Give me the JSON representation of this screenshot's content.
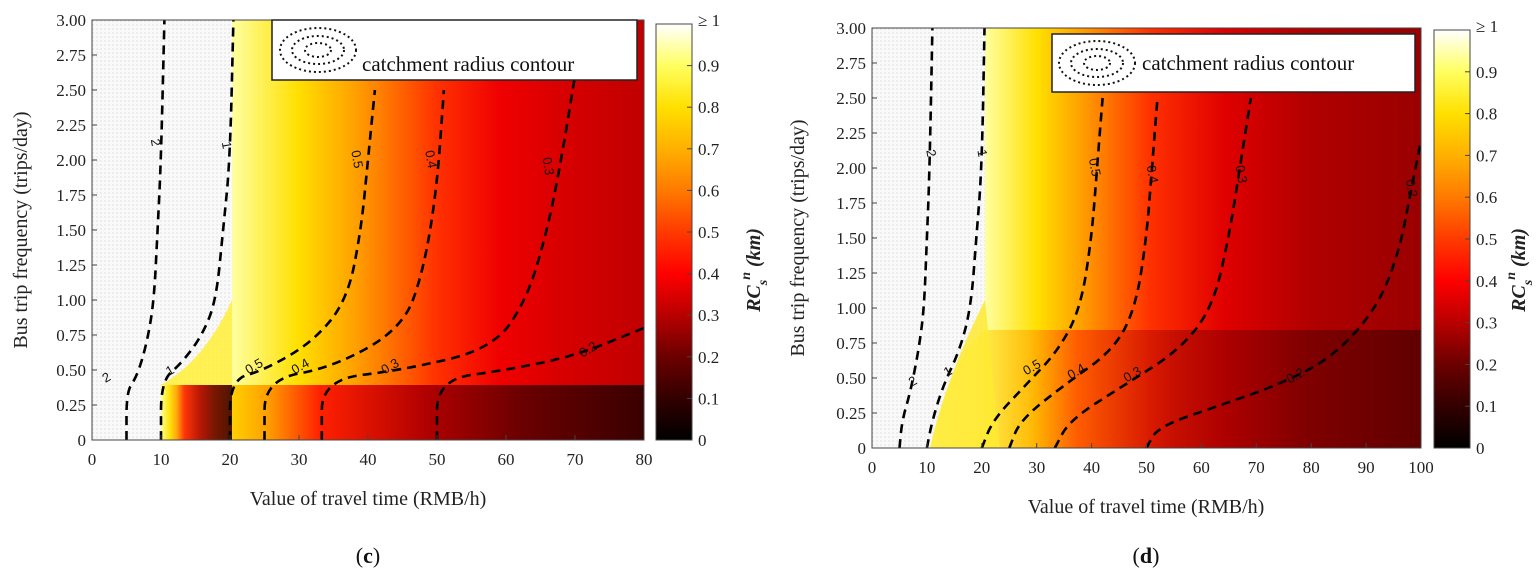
{
  "chart_data": [
    {
      "type": "heatmap",
      "panel_caption": "(c)",
      "panel_letter": "c",
      "xlabel": "Value of travel time (RMB/h)",
      "ylabel": "Bus trip frequency (trips/day)",
      "colorbar_label": "RC_s^n (km)",
      "xlim": [
        0,
        80
      ],
      "ylim": [
        0,
        3
      ],
      "xticks": [
        "0",
        "10",
        "20",
        "30",
        "40",
        "50",
        "60",
        "70",
        "80"
      ],
      "yticks": [
        "0",
        "0.25",
        "0.50",
        "0.75",
        "1.00",
        "1.25",
        "1.50",
        "1.75",
        "2.00",
        "2.25",
        "2.50",
        "2.75",
        "3.00"
      ],
      "colorbar_ticks": [
        "0",
        "0.1",
        "0.2",
        "0.3",
        "0.4",
        "0.5",
        "0.6",
        "0.7",
        "0.8",
        "0.9",
        "≥ 1"
      ],
      "legend": "catchment radius contour",
      "contours": [
        {
          "label": "2",
          "points": [
            [
              5,
              0
            ],
            [
              5,
              0.35
            ],
            [
              6.5,
              0.45
            ],
            [
              8,
              0.7
            ],
            [
              9,
              1.0
            ],
            [
              9.5,
              1.5
            ],
            [
              10,
              2.0
            ],
            [
              10.5,
              3.0
            ]
          ],
          "label_at": [
            2.4,
            0.42
          ],
          "label_top": [
            8.6,
            2.12
          ]
        },
        {
          "label": "1",
          "points": [
            [
              10,
              0
            ],
            [
              10,
              0.42
            ],
            [
              13,
              0.55
            ],
            [
              16,
              0.75
            ],
            [
              18,
              1.0
            ],
            [
              19,
              1.5
            ],
            [
              20,
              2.0
            ],
            [
              20.5,
              3.0
            ]
          ],
          "label_at": [
            11.6,
            0.47
          ],
          "label_top": [
            18.9,
            2.1
          ]
        },
        {
          "label": "0.5",
          "points": [
            [
              20,
              0
            ],
            [
              20,
              0.43
            ],
            [
              25,
              0.5
            ],
            [
              32,
              0.7
            ],
            [
              37,
              1.0
            ],
            [
              39,
              1.5
            ],
            [
              40,
              2.0
            ],
            [
              41,
              2.5
            ]
          ],
          "label_at": [
            23.8,
            0.5
          ],
          "label_top": [
            37.8,
            2.0
          ]
        },
        {
          "label": "0.4",
          "points": [
            [
              25,
              0
            ],
            [
              25,
              0.43
            ],
            [
              35,
              0.52
            ],
            [
              45,
              0.8
            ],
            [
              48,
              1.2
            ],
            [
              50,
              1.8
            ],
            [
              51,
              2.5
            ]
          ],
          "label_at": [
            30.5,
            0.5
          ],
          "label_top": [
            48.5,
            2.0
          ]
        },
        {
          "label": "0.3",
          "points": [
            [
              33.3,
              0
            ],
            [
              33.3,
              0.43
            ],
            [
              45,
              0.5
            ],
            [
              58,
              0.65
            ],
            [
              63,
              1.0
            ],
            [
              66,
              1.5
            ],
            [
              68,
              2.0
            ],
            [
              70,
              2.6
            ]
          ],
          "label_at": [
            43.5,
            0.5
          ],
          "label_top": [
            65.5,
            1.95
          ]
        },
        {
          "label": "0.2",
          "points": [
            [
              50,
              0
            ],
            [
              50,
              0.43
            ],
            [
              60,
              0.5
            ],
            [
              70,
              0.6
            ],
            [
              80,
              0.8
            ]
          ],
          "label_at": [
            72.2,
            0.62
          ]
        }
      ]
    },
    {
      "type": "heatmap",
      "panel_caption": "(d)",
      "panel_letter": "d",
      "xlabel": "Value of travel time (RMB/h)",
      "ylabel": "Bus trip frequency (trips/day)",
      "colorbar_label": "RC_s^n (km)",
      "xlim": [
        0,
        100
      ],
      "ylim": [
        0,
        3
      ],
      "xticks": [
        "0",
        "10",
        "20",
        "30",
        "40",
        "50",
        "60",
        "70",
        "80",
        "90",
        "100"
      ],
      "yticks": [
        "0",
        "0.25",
        "0.50",
        "0.75",
        "1.00",
        "1.25",
        "1.50",
        "1.75",
        "2.00",
        "2.25",
        "2.50",
        "2.75",
        "3.00"
      ],
      "colorbar_ticks": [
        "0",
        "0.1",
        "0.2",
        "0.3",
        "0.4",
        "0.5",
        "0.6",
        "0.7",
        "0.8",
        "0.9",
        "≥ 1"
      ],
      "legend": "catchment radius contour",
      "contours": [
        {
          "label": "2",
          "points": [
            [
              5,
              0
            ],
            [
              5.5,
              0.2
            ],
            [
              7,
              0.4
            ],
            [
              8.5,
              0.7
            ],
            [
              9.5,
              1.0
            ],
            [
              10,
              1.5
            ],
            [
              10.5,
              2.0
            ],
            [
              11,
              3.0
            ]
          ],
          "label_at": [
            7.8,
            0.45
          ],
          "label_top": [
            10,
            2.1
          ]
        },
        {
          "label": "1",
          "points": [
            [
              10,
              0
            ],
            [
              11,
              0.2
            ],
            [
              13,
              0.45
            ],
            [
              16,
              0.7
            ],
            [
              18,
              1.0
            ],
            [
              19,
              1.5
            ],
            [
              20,
              2.0
            ],
            [
              20.5,
              3.0
            ]
          ],
          "label_at": [
            14.2,
            0.52
          ],
          "label_top": [
            19.3,
            2.1
          ]
        },
        {
          "label": "0.5",
          "points": [
            [
              20,
              0
            ],
            [
              22,
              0.2
            ],
            [
              28,
              0.45
            ],
            [
              34,
              0.7
            ],
            [
              38,
              1.0
            ],
            [
              40,
              1.5
            ],
            [
              41,
              2.0
            ],
            [
              42,
              2.5
            ]
          ],
          "label_at": [
            29.5,
            0.55
          ],
          "label_top": [
            39.8,
            2.0
          ]
        },
        {
          "label": "0.4",
          "points": [
            [
              25,
              0
            ],
            [
              27,
              0.2
            ],
            [
              35,
              0.45
            ],
            [
              44,
              0.7
            ],
            [
              48,
              1.0
            ],
            [
              50,
              1.5
            ],
            [
              51,
              2.0
            ],
            [
              52,
              2.5
            ]
          ],
          "label_at": [
            37.6,
            0.52
          ],
          "label_top": [
            50.3,
            1.95
          ]
        },
        {
          "label": "0.3",
          "points": [
            [
              33.3,
              0
            ],
            [
              36,
              0.2
            ],
            [
              46,
              0.45
            ],
            [
              56,
              0.7
            ],
            [
              62,
              1.0
            ],
            [
              65,
              1.5
            ],
            [
              67,
              2.0
            ],
            [
              69,
              2.5
            ]
          ],
          "label_at": [
            47.8,
            0.5
          ],
          "label_top": [
            66.5,
            1.95
          ]
        },
        {
          "label": "0.2",
          "points": [
            [
              50,
              0
            ],
            [
              52,
              0.15
            ],
            [
              63,
              0.3
            ],
            [
              74,
              0.45
            ],
            [
              84,
              0.65
            ],
            [
              92,
              1.0
            ],
            [
              96,
              1.4
            ],
            [
              98,
              1.8
            ],
            [
              100,
              2.2
            ]
          ],
          "label_at": [
            77.5,
            0.49
          ],
          "label_top": [
            97.5,
            1.85
          ]
        }
      ]
    }
  ]
}
